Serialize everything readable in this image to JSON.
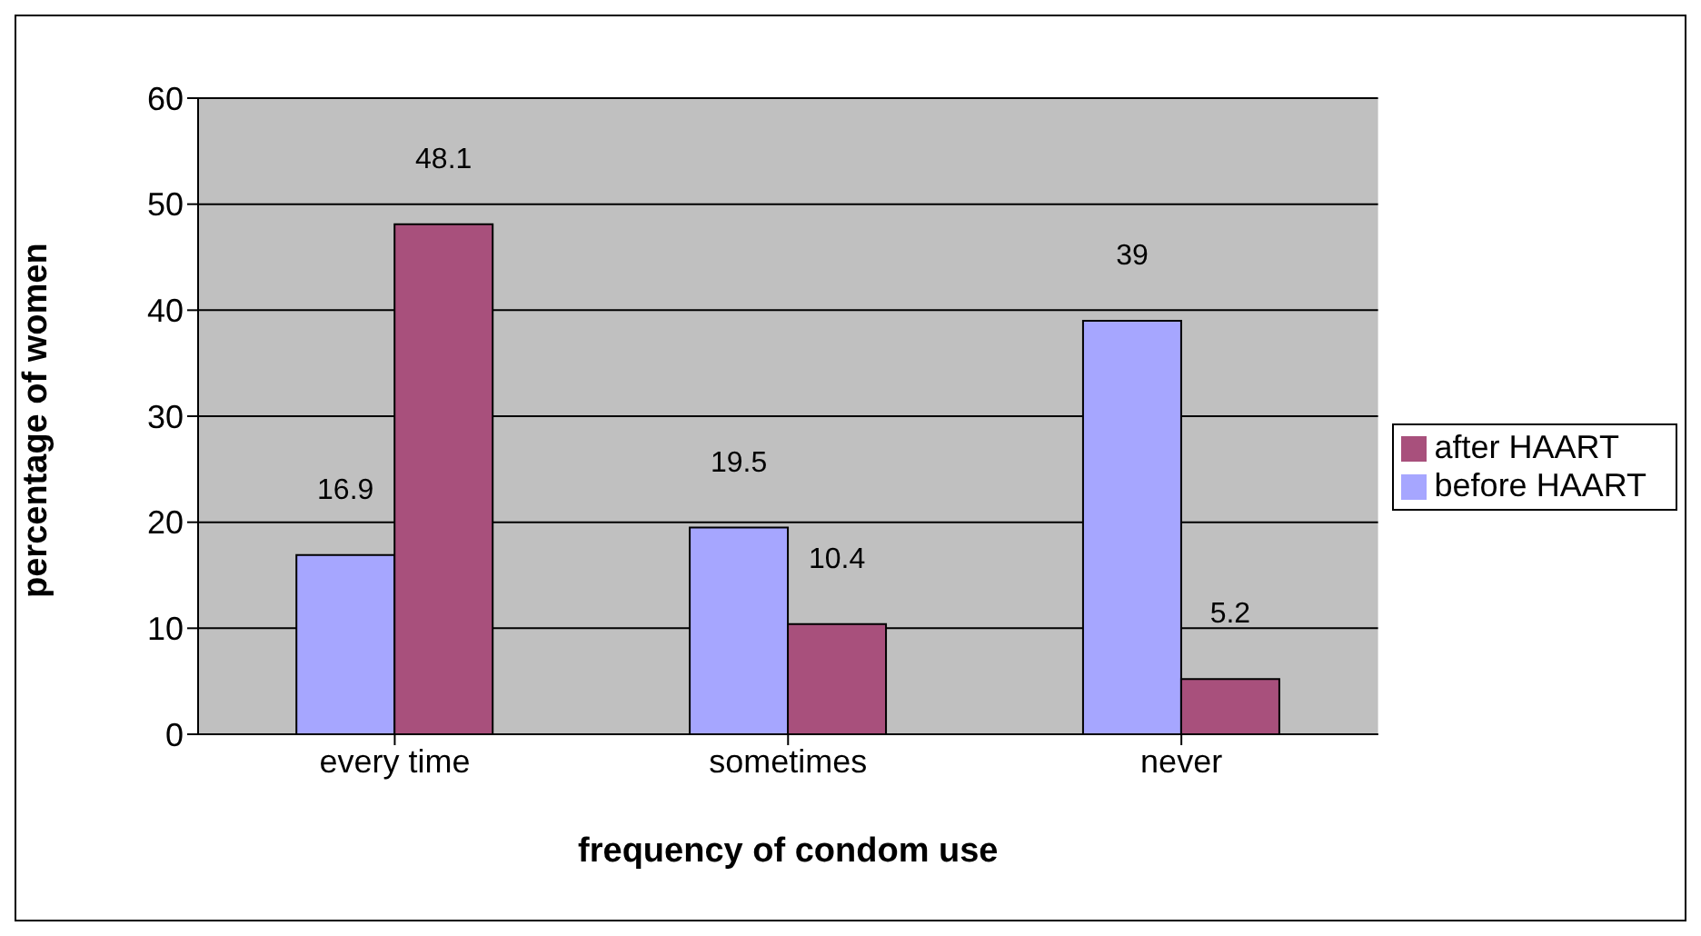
{
  "chart_data": {
    "type": "bar",
    "xlabel": "frequency of condom use",
    "ylabel": "percentage of women",
    "categories": [
      "every time",
      "sometimes",
      "never"
    ],
    "series": [
      {
        "name": "before HAART",
        "color": "#a6a6ff",
        "values": [
          16.9,
          19.5,
          39
        ]
      },
      {
        "name": "after HAART",
        "color": "#a8507c",
        "values": [
          48.1,
          10.4,
          5.2
        ]
      }
    ],
    "ylim": [
      0,
      60
    ],
    "yticks": [
      0,
      10,
      20,
      30,
      40,
      50,
      60
    ],
    "grid": "y",
    "legend": "right",
    "data_labels": true
  }
}
